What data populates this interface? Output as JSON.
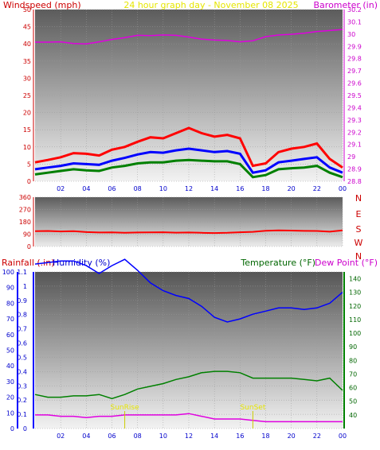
{
  "title": "24 hour graph day - November 08 2025",
  "chart_data": [
    {
      "type": "line",
      "panel": "wind-barometer",
      "left_axis_label": "Windspeed (mph)",
      "right_axis_label": "Barometer (in)",
      "x_ticks": [
        "02",
        "04",
        "06",
        "08",
        "10",
        "12",
        "14",
        "16",
        "18",
        "20",
        "22",
        "00"
      ],
      "left_ylim": [
        0,
        50
      ],
      "left_ticks": [
        "0",
        "5",
        "10",
        "15",
        "20",
        "25",
        "30",
        "35",
        "40",
        "45",
        "50"
      ],
      "right_ylim": [
        28.8,
        30.2
      ],
      "right_ticks": [
        "28.8",
        "28.9",
        "29",
        "29.1",
        "29.2",
        "29.3",
        "29.4",
        "29.5",
        "29.6",
        "29.7",
        "29.8",
        "29.9",
        "30",
        "30.1",
        "30.2"
      ],
      "hours": [
        0,
        1,
        2,
        3,
        4,
        5,
        6,
        7,
        8,
        9,
        10,
        11,
        12,
        13,
        14,
        15,
        16,
        17,
        18,
        19,
        20,
        21,
        22,
        23,
        24
      ],
      "series": [
        {
          "color": "#e000e0",
          "values": [
            40.5,
            40.5,
            40.6,
            40.1,
            40.0,
            40.6,
            41.3,
            41.8,
            42.5,
            42.4,
            42.6,
            42.5,
            42.0,
            41.4,
            41.1,
            41.0,
            40.6,
            40.9,
            42.1,
            42.6,
            42.8,
            43.1,
            43.6,
            43.9,
            44.2
          ]
        },
        {
          "color": "#ff0000",
          "values": [
            5.5,
            6.2,
            7.0,
            8.2,
            8.0,
            7.5,
            9.2,
            10.0,
            11.5,
            12.8,
            12.5,
            14.0,
            15.5,
            14.0,
            13.0,
            13.5,
            12.5,
            4.5,
            5.2,
            8.5,
            9.5,
            10.0,
            11.0,
            6.5,
            4.0
          ]
        },
        {
          "color": "#0000ff",
          "values": [
            3.5,
            4.0,
            4.5,
            5.2,
            5.0,
            4.8,
            6.0,
            6.8,
            7.8,
            8.5,
            8.3,
            9.0,
            9.5,
            9.0,
            8.5,
            8.8,
            8.0,
            2.5,
            3.2,
            5.5,
            6.0,
            6.5,
            7.0,
            4.0,
            2.5
          ]
        },
        {
          "color": "#008000",
          "values": [
            2.0,
            2.5,
            3.0,
            3.5,
            3.2,
            3.0,
            4.0,
            4.5,
            5.2,
            5.5,
            5.5,
            6.0,
            6.2,
            6.0,
            5.8,
            5.8,
            5.0,
            1.2,
            1.8,
            3.5,
            3.8,
            4.0,
            4.5,
            2.5,
            1.2
          ]
        }
      ]
    },
    {
      "type": "line",
      "panel": "wind-direction",
      "ylim": [
        0,
        360
      ],
      "y_ticks": [
        "0",
        "90",
        "180",
        "270",
        "360"
      ],
      "right_labels": [
        "N",
        "W",
        "S",
        "E",
        "N"
      ],
      "hours": [
        0,
        1,
        2,
        3,
        4,
        5,
        6,
        7,
        8,
        9,
        10,
        11,
        12,
        13,
        14,
        15,
        16,
        17,
        18,
        19,
        20,
        21,
        22,
        23,
        24
      ],
      "series": [
        {
          "color": "#ff0000",
          "values": [
            112,
            113,
            110,
            112,
            105,
            102,
            103,
            100,
            102,
            103,
            104,
            101,
            102,
            100,
            98,
            100,
            104,
            107,
            115,
            118,
            116,
            114,
            113,
            108,
            118
          ]
        }
      ]
    },
    {
      "type": "line",
      "panel": "rain-humidity-temperature",
      "labels": {
        "rainfall": "Rainfall (.in)",
        "humidity": "Humidity (%)",
        "temperature": "Temperature (°F)",
        "dewpoint": "Dew Point (°F)"
      },
      "rain_ylim": [
        0,
        1.1
      ],
      "rain_ticks": [
        "0",
        "0.1",
        "0.2",
        "0.3",
        "0.4",
        "0.5",
        "0.6",
        "0.7",
        "0.8",
        "0.9",
        "1",
        "1.1"
      ],
      "humidity_ylim": [
        0,
        100
      ],
      "humidity_ticks": [
        "0",
        "10",
        "20",
        "30",
        "40",
        "50",
        "60",
        "70",
        "80",
        "90",
        "100"
      ],
      "temp_ylim": [
        30,
        145
      ],
      "temp_ticks": [
        "40",
        "50",
        "60",
        "70",
        "80",
        "90",
        "100",
        "110",
        "120",
        "130",
        "140"
      ],
      "annotations": [
        {
          "text": "SunRise",
          "hour": 7.0
        },
        {
          "text": "SunSet",
          "hour": 17.0
        }
      ],
      "hours": [
        0,
        1,
        2,
        3,
        4,
        5,
        6,
        7,
        8,
        9,
        10,
        11,
        12,
        13,
        14,
        15,
        16,
        17,
        18,
        19,
        20,
        21,
        22,
        23,
        24
      ],
      "series": [
        {
          "color": "#0000ff",
          "values": [
            105,
            106,
            107,
            107,
            104,
            99,
            104,
            108,
            101,
            93,
            88,
            85,
            83,
            78,
            71,
            68,
            70,
            73,
            75,
            77,
            77,
            76,
            77,
            80,
            87
          ]
        },
        {
          "color": "#008000",
          "values": [
            55,
            53,
            53,
            54,
            54,
            55,
            52,
            55,
            59,
            61,
            63,
            66,
            68,
            71,
            72,
            72,
            71,
            67,
            67,
            67,
            67,
            66,
            65,
            67,
            58
          ]
        },
        {
          "color": "#e000e0",
          "values": [
            40,
            40,
            39,
            39,
            38,
            39,
            39,
            40,
            40,
            40,
            40,
            40,
            41,
            39,
            37,
            37,
            37,
            36,
            35,
            35,
            35,
            35,
            35,
            35,
            35
          ]
        }
      ]
    }
  ]
}
